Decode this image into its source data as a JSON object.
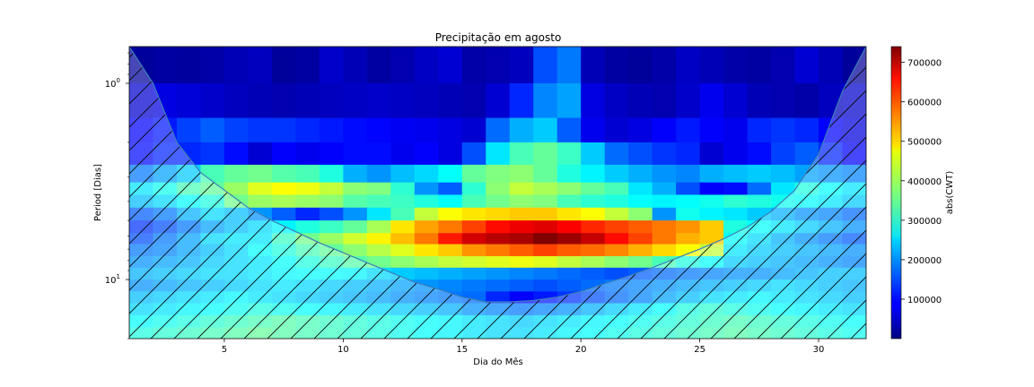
{
  "chart_data": {
    "type": "heatmap",
    "title": "Precipitação em agosto",
    "xlabel": "Dia do Mês",
    "ylabel": "Period [Dias]",
    "xlim": [
      1,
      32
    ],
    "ylim": [
      20,
      0.65
    ],
    "yscale": "log",
    "x_ticks": [
      5,
      10,
      15,
      20,
      25,
      30
    ],
    "y_ticks": [
      {
        "label": "10",
        "exp": "0",
        "value": 1
      },
      {
        "label": "10",
        "exp": "1",
        "value": 10
      }
    ],
    "colormap": "jet",
    "colorbar": {
      "label": "abs(CWT)",
      "min": 0,
      "max": 740000,
      "ticks": [
        "100000",
        "200000",
        "300000",
        "400000",
        "500000",
        "600000",
        "700000"
      ]
    },
    "days": [
      1,
      2,
      3,
      4,
      5,
      6,
      7,
      8,
      9,
      10,
      11,
      12,
      13,
      14,
      15,
      16,
      17,
      18,
      19,
      20,
      21,
      22,
      23,
      24,
      25,
      26,
      27,
      28,
      29,
      30,
      31
    ],
    "row_boundaries": [
      0.65,
      1.0,
      1.5,
      2.0,
      2.6,
      3.2,
      3.7,
      4.3,
      5.0,
      5.8,
      6.6,
      7.6,
      8.7,
      10.0,
      11.5,
      13.2,
      15.2,
      17.5,
      20.0
    ],
    "values": [
      [
        20000,
        25000,
        22000,
        30000,
        40000,
        45000,
        20000,
        25000,
        55000,
        40000,
        25000,
        35000,
        50000,
        60000,
        30000,
        35000,
        45000,
        150000,
        180000,
        40000,
        25000,
        20000,
        30000,
        50000,
        40000,
        30000,
        25000,
        35000,
        60000,
        40000,
        20000
      ],
      [
        60000,
        70000,
        65000,
        55000,
        45000,
        40000,
        35000,
        40000,
        45000,
        50000,
        55000,
        50000,
        45000,
        40000,
        35000,
        60000,
        120000,
        190000,
        210000,
        70000,
        50000,
        40000,
        35000,
        55000,
        80000,
        60000,
        40000,
        35000,
        30000,
        45000,
        55000
      ],
      [
        90000,
        110000,
        140000,
        160000,
        140000,
        130000,
        130000,
        120000,
        110000,
        100000,
        95000,
        85000,
        80000,
        70000,
        60000,
        170000,
        220000,
        240000,
        160000,
        80000,
        60000,
        70000,
        90000,
        110000,
        90000,
        80000,
        120000,
        130000,
        120000,
        90000,
        70000
      ],
      [
        100000,
        120000,
        120000,
        130000,
        100000,
        60000,
        90000,
        80000,
        90000,
        100000,
        100000,
        80000,
        90000,
        70000,
        150000,
        260000,
        330000,
        350000,
        320000,
        240000,
        170000,
        150000,
        130000,
        120000,
        60000,
        80000,
        100000,
        140000,
        160000,
        120000,
        90000
      ],
      [
        180000,
        210000,
        240000,
        330000,
        350000,
        360000,
        340000,
        330000,
        300000,
        220000,
        200000,
        230000,
        250000,
        280000,
        350000,
        370000,
        380000,
        350000,
        300000,
        270000,
        240000,
        220000,
        200000,
        190000,
        220000,
        230000,
        240000,
        230000,
        210000,
        200000,
        190000
      ],
      [
        260000,
        290000,
        330000,
        350000,
        390000,
        440000,
        460000,
        450000,
        420000,
        380000,
        370000,
        310000,
        200000,
        160000,
        310000,
        380000,
        420000,
        400000,
        380000,
        350000,
        330000,
        260000,
        220000,
        150000,
        90000,
        100000,
        170000,
        260000,
        300000,
        280000,
        260000
      ],
      [
        230000,
        250000,
        280000,
        300000,
        360000,
        390000,
        400000,
        390000,
        380000,
        340000,
        330000,
        320000,
        300000,
        280000,
        330000,
        360000,
        380000,
        370000,
        330000,
        310000,
        300000,
        280000,
        270000,
        280000,
        290000,
        310000,
        300000,
        290000,
        280000,
        260000,
        240000
      ],
      [
        160000,
        180000,
        220000,
        250000,
        230000,
        200000,
        160000,
        120000,
        150000,
        200000,
        260000,
        330000,
        420000,
        460000,
        480000,
        490000,
        500000,
        500000,
        480000,
        460000,
        420000,
        380000,
        200000,
        290000,
        270000,
        260000,
        240000,
        220000,
        200000,
        190000,
        170000
      ],
      [
        130000,
        150000,
        180000,
        210000,
        230000,
        250000,
        270000,
        300000,
        320000,
        350000,
        400000,
        480000,
        530000,
        560000,
        600000,
        640000,
        660000,
        670000,
        650000,
        620000,
        600000,
        580000,
        560000,
        540000,
        500000,
        300000,
        280000,
        260000,
        240000,
        220000,
        200000
      ],
      [
        150000,
        180000,
        210000,
        250000,
        260000,
        260000,
        320000,
        360000,
        390000,
        430000,
        470000,
        510000,
        560000,
        630000,
        680000,
        700000,
        710000,
        740000,
        720000,
        690000,
        640000,
        600000,
        560000,
        520000,
        500000,
        280000,
        250000,
        220000,
        200000,
        180000,
        160000
      ],
      [
        180000,
        190000,
        210000,
        230000,
        250000,
        280000,
        300000,
        330000,
        350000,
        380000,
        410000,
        440000,
        480000,
        500000,
        540000,
        560000,
        580000,
        600000,
        580000,
        570000,
        550000,
        520000,
        490000,
        460000,
        420000,
        260000,
        240000,
        230000,
        220000,
        210000,
        200000
      ],
      [
        200000,
        210000,
        220000,
        240000,
        250000,
        260000,
        280000,
        300000,
        320000,
        340000,
        360000,
        380000,
        400000,
        420000,
        430000,
        440000,
        450000,
        440000,
        420000,
        400000,
        380000,
        360000,
        330000,
        300000,
        280000,
        240000,
        230000,
        220000,
        210000,
        200000,
        190000
      ],
      [
        220000,
        230000,
        240000,
        250000,
        250000,
        260000,
        270000,
        280000,
        280000,
        270000,
        250000,
        240000,
        230000,
        220000,
        210000,
        200000,
        190000,
        180000,
        170000,
        160000,
        150000,
        160000,
        170000,
        180000,
        190000,
        200000,
        200000,
        210000,
        220000,
        230000,
        230000
      ],
      [
        200000,
        210000,
        220000,
        230000,
        240000,
        250000,
        260000,
        250000,
        240000,
        230000,
        220000,
        210000,
        200000,
        190000,
        180000,
        170000,
        160000,
        150000,
        160000,
        170000,
        180000,
        190000,
        200000,
        210000,
        220000,
        230000,
        240000,
        250000,
        240000,
        230000,
        220000
      ],
      [
        230000,
        240000,
        250000,
        260000,
        270000,
        260000,
        250000,
        240000,
        230000,
        220000,
        210000,
        200000,
        190000,
        180000,
        170000,
        120000,
        90000,
        110000,
        130000,
        150000,
        170000,
        190000,
        210000,
        230000,
        250000,
        260000,
        270000,
        260000,
        250000,
        240000,
        230000
      ],
      [
        250000,
        260000,
        270000,
        280000,
        290000,
        300000,
        290000,
        280000,
        270000,
        260000,
        250000,
        240000,
        230000,
        220000,
        200000,
        190000,
        180000,
        190000,
        200000,
        220000,
        240000,
        260000,
        280000,
        300000,
        310000,
        300000,
        290000,
        280000,
        270000,
        260000,
        250000
      ],
      [
        280000,
        290000,
        300000,
        310000,
        320000,
        330000,
        340000,
        330000,
        320000,
        310000,
        300000,
        290000,
        280000,
        270000,
        260000,
        250000,
        240000,
        250000,
        260000,
        270000,
        280000,
        290000,
        300000,
        310000,
        320000,
        330000,
        320000,
        310000,
        300000,
        290000,
        280000
      ],
      [
        300000,
        310000,
        320000,
        330000,
        340000,
        350000,
        340000,
        330000,
        320000,
        310000,
        300000,
        290000,
        280000,
        270000,
        260000,
        250000,
        250000,
        260000,
        270000,
        280000,
        290000,
        300000,
        310000,
        320000,
        330000,
        340000,
        330000,
        320000,
        310000,
        300000,
        290000
      ]
    ],
    "cone_of_influence": {
      "hatched": true,
      "points": [
        [
          1,
          0.65
        ],
        [
          2,
          1.0
        ],
        [
          3,
          2.0
        ],
        [
          4,
          2.85
        ],
        [
          5,
          3.5
        ],
        [
          6,
          4.3
        ],
        [
          7,
          5.0
        ],
        [
          8,
          5.7
        ],
        [
          9,
          6.5
        ],
        [
          10,
          7.3
        ],
        [
          11,
          8.2
        ],
        [
          12,
          9.2
        ],
        [
          13,
          10.3
        ],
        [
          14,
          11.2
        ],
        [
          15,
          12.3
        ],
        [
          16,
          13.0
        ],
        [
          17,
          13.0
        ],
        [
          18,
          12.8
        ],
        [
          19,
          12.3
        ],
        [
          20,
          11.5
        ],
        [
          21,
          10.5
        ],
        [
          22,
          9.6
        ],
        [
          23,
          8.7
        ],
        [
          24,
          7.8
        ],
        [
          25,
          7.0
        ],
        [
          26,
          6.2
        ],
        [
          27,
          5.4
        ],
        [
          28,
          4.5
        ],
        [
          29,
          3.5
        ],
        [
          30,
          2.3
        ],
        [
          31,
          1.1
        ],
        [
          32,
          0.65
        ]
      ]
    }
  }
}
